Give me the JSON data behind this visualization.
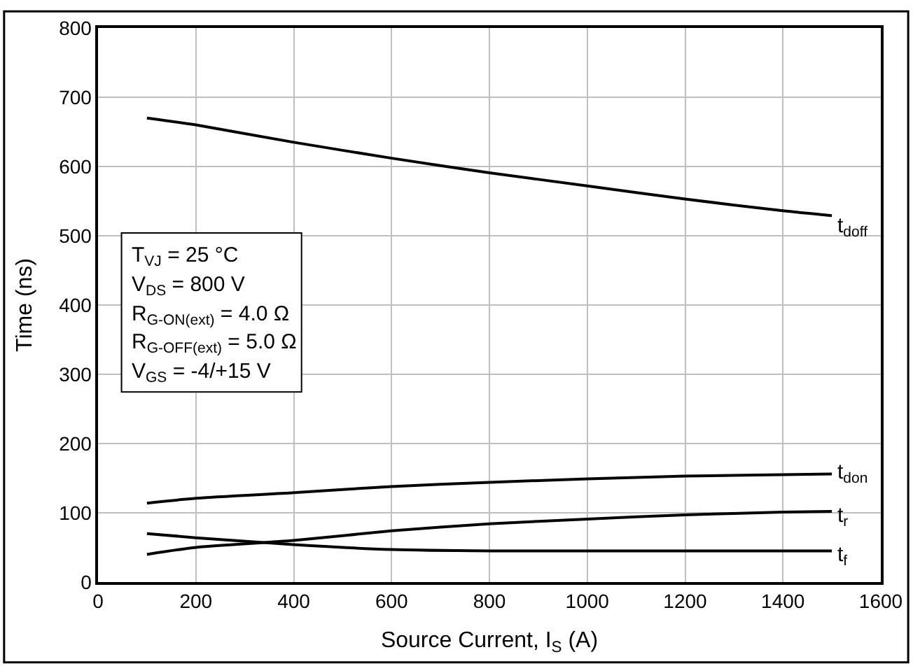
{
  "chart_data": {
    "type": "line",
    "xlabel": "Source Current, I$_{S}$ (A)",
    "ylabel": "Time (ns)",
    "x": [
      100,
      200,
      400,
      600,
      800,
      1000,
      1200,
      1400,
      1500
    ],
    "series": [
      {
        "name": "t$_{doff}$",
        "color": "#000000",
        "values": [
          670,
          660,
          635,
          612,
          591,
          572,
          553,
          536,
          529
        ]
      },
      {
        "name": "t$_{don}$",
        "color": "#000000",
        "values": [
          114,
          121,
          129,
          138,
          144,
          149,
          153,
          155,
          156
        ]
      },
      {
        "name": "t$_{r}$",
        "color": "#000000",
        "values": [
          40,
          50,
          60,
          74,
          84,
          91,
          97,
          101,
          102
        ]
      },
      {
        "name": "t$_{f}$",
        "color": "#000000",
        "values": [
          70,
          64,
          54,
          47,
          45,
          45,
          45,
          45,
          45
        ]
      }
    ],
    "annotations": [
      "T$_{VJ}$ = 25 °C",
      "V$_{DS}$ = 800 V",
      "R$_{G-ON(ext)}$ = 4.0 Ω",
      "R$_{G-OFF(ext)}$ = 5.0 Ω",
      "V$_{GS}$ = -4/+15 V"
    ],
    "xlim": [
      0,
      1600
    ],
    "xticks": [
      0,
      200,
      400,
      600,
      800,
      1000,
      1200,
      1400,
      1600
    ],
    "ylim": [
      0,
      800
    ],
    "yticks": [
      0,
      100,
      200,
      300,
      400,
      500,
      600,
      700,
      800
    ],
    "grid": true,
    "legend": false,
    "marker": "none",
    "line_style": "solid"
  }
}
